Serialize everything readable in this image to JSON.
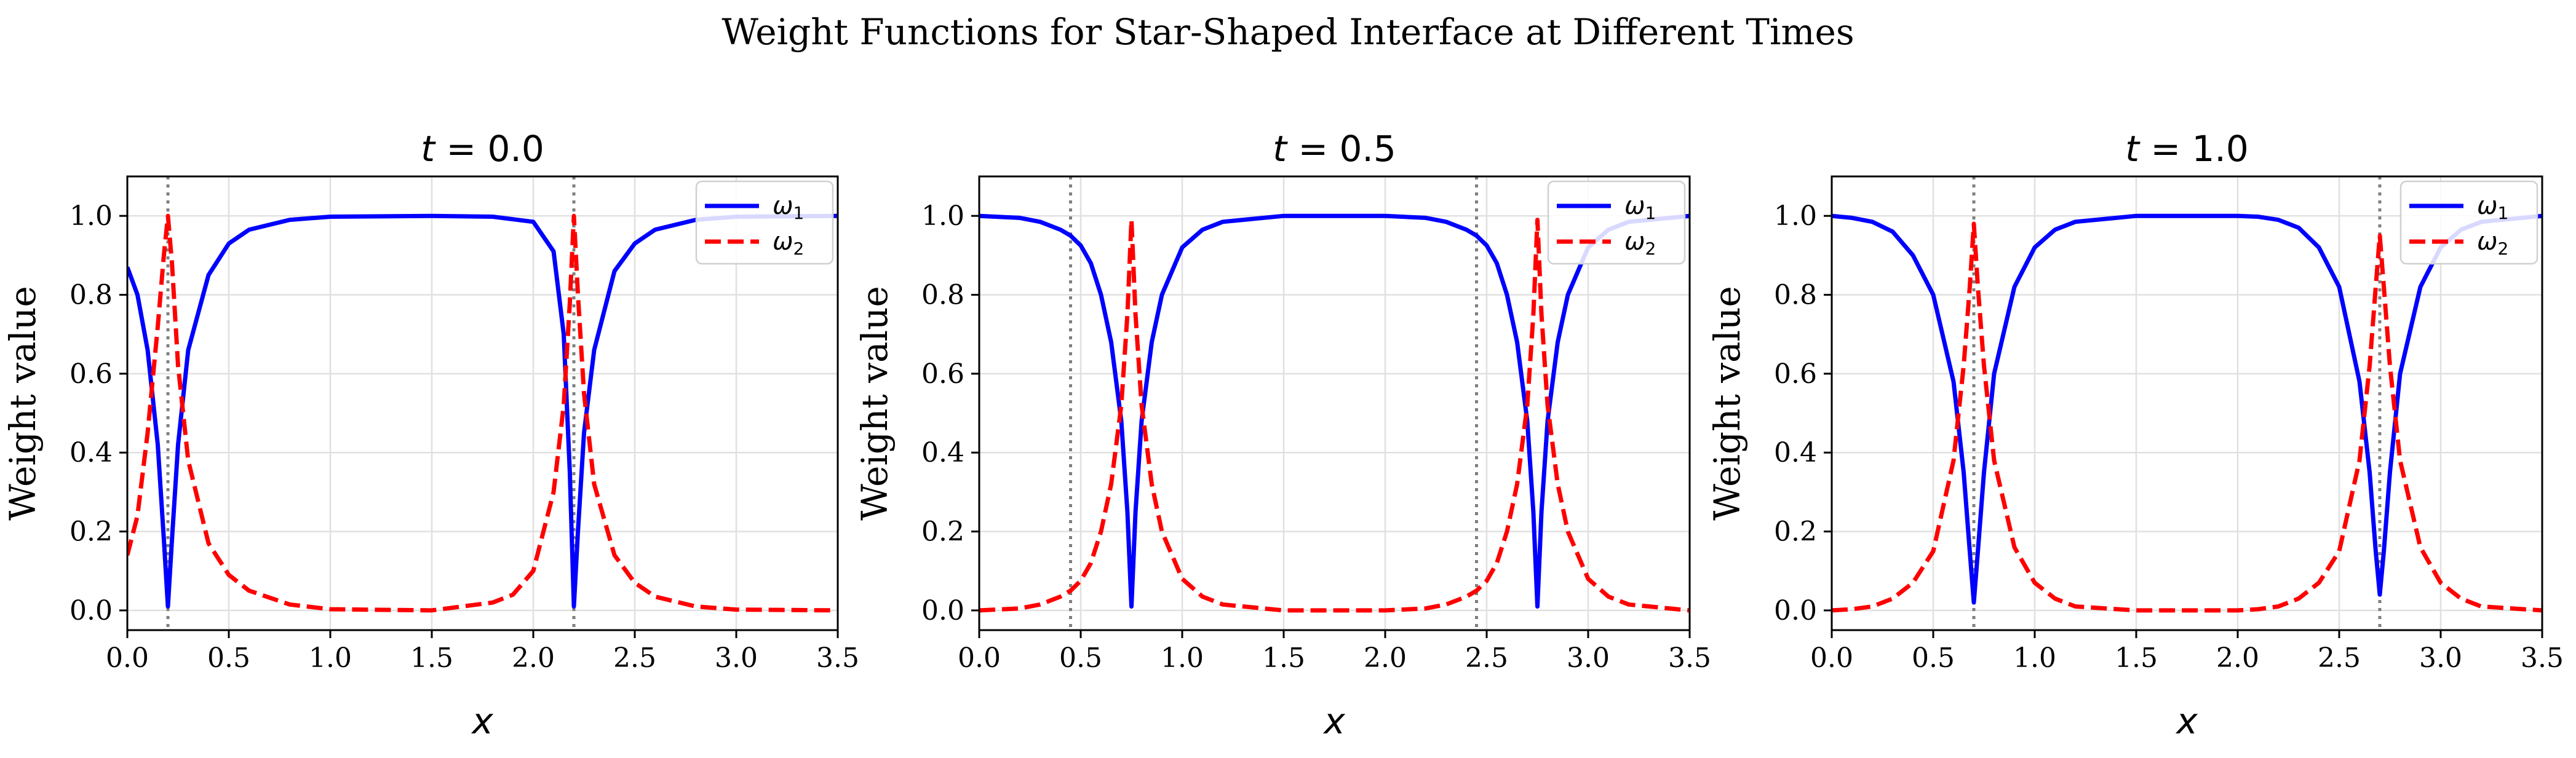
{
  "figure": {
    "title": "Weight Functions for Star-Shaped Interface at Different Times"
  },
  "colors": {
    "omega1": "#0000ff",
    "omega2": "#ff0000",
    "interface_line": "#808080",
    "grid": "#e0e0e0",
    "axes": "#000000"
  },
  "chart_data": [
    {
      "type": "line",
      "title": "t = 0.0",
      "title_var": "t",
      "title_val": "= 0.0",
      "xlabel": "x",
      "ylabel": "Weight value",
      "xlim": [
        0.0,
        3.5
      ],
      "ylim": [
        -0.05,
        1.1
      ],
      "xticks": [
        0.0,
        0.5,
        1.0,
        1.5,
        2.0,
        2.5,
        3.0,
        3.5
      ],
      "xtick_labels": [
        "0.0",
        "0.5",
        "1.0",
        "1.5",
        "2.0",
        "2.5",
        "3.0",
        "3.5"
      ],
      "yticks": [
        0.0,
        0.2,
        0.4,
        0.6,
        0.8,
        1.0
      ],
      "ytick_labels": [
        "0.0",
        "0.2",
        "0.4",
        "0.6",
        "0.8",
        "1.0"
      ],
      "grid": true,
      "legend_position": "top-right",
      "interfaces": [
        0.2,
        2.2
      ],
      "series": [
        {
          "name": "ω₁",
          "legend_base": "ω",
          "legend_sub": "1",
          "style": "solid",
          "color": "#0000ff",
          "x": [
            0.0,
            0.05,
            0.1,
            0.15,
            0.18,
            0.2,
            0.22,
            0.25,
            0.3,
            0.4,
            0.5,
            0.6,
            0.8,
            1.0,
            1.5,
            1.8,
            2.0,
            2.1,
            2.15,
            2.18,
            2.2,
            2.22,
            2.25,
            2.3,
            2.4,
            2.5,
            2.6,
            2.8,
            3.0,
            3.5
          ],
          "y": [
            0.87,
            0.8,
            0.66,
            0.42,
            0.18,
            0.01,
            0.18,
            0.42,
            0.66,
            0.85,
            0.93,
            0.965,
            0.99,
            0.998,
            1.0,
            0.998,
            0.985,
            0.91,
            0.7,
            0.35,
            0.01,
            0.2,
            0.45,
            0.66,
            0.86,
            0.93,
            0.965,
            0.99,
            0.998,
            1.0
          ]
        },
        {
          "name": "ω₂",
          "legend_base": "ω",
          "legend_sub": "2",
          "style": "dashed",
          "color": "#ff0000",
          "x": [
            0.0,
            0.05,
            0.1,
            0.15,
            0.18,
            0.2,
            0.22,
            0.25,
            0.3,
            0.4,
            0.5,
            0.6,
            0.8,
            1.0,
            1.5,
            1.8,
            1.9,
            2.0,
            2.1,
            2.15,
            2.18,
            2.2,
            2.22,
            2.25,
            2.3,
            2.4,
            2.5,
            2.6,
            2.8,
            3.0,
            3.5
          ],
          "y": [
            0.14,
            0.24,
            0.45,
            0.72,
            0.9,
            1.0,
            0.88,
            0.62,
            0.38,
            0.17,
            0.09,
            0.05,
            0.015,
            0.003,
            0.0,
            0.02,
            0.04,
            0.1,
            0.3,
            0.52,
            0.78,
            1.0,
            0.8,
            0.55,
            0.32,
            0.14,
            0.07,
            0.035,
            0.01,
            0.002,
            0.0
          ]
        }
      ]
    },
    {
      "type": "line",
      "title": "t = 0.5",
      "title_var": "t",
      "title_val": "= 0.5",
      "xlabel": "x",
      "ylabel": "Weight value",
      "xlim": [
        0.0,
        3.5
      ],
      "ylim": [
        -0.05,
        1.1
      ],
      "xticks": [
        0.0,
        0.5,
        1.0,
        1.5,
        2.0,
        2.5,
        3.0,
        3.5
      ],
      "xtick_labels": [
        "0.0",
        "0.5",
        "1.0",
        "1.5",
        "2.0",
        "2.5",
        "3.0",
        "3.5"
      ],
      "yticks": [
        0.0,
        0.2,
        0.4,
        0.6,
        0.8,
        1.0
      ],
      "ytick_labels": [
        "0.0",
        "0.2",
        "0.4",
        "0.6",
        "0.8",
        "1.0"
      ],
      "grid": true,
      "legend_position": "top-right",
      "interfaces": [
        0.45,
        2.45
      ],
      "series": [
        {
          "name": "ω₁",
          "legend_base": "ω",
          "legend_sub": "1",
          "style": "solid",
          "color": "#0000ff",
          "x": [
            0.0,
            0.2,
            0.3,
            0.4,
            0.45,
            0.5,
            0.55,
            0.6,
            0.65,
            0.7,
            0.73,
            0.75,
            0.77,
            0.8,
            0.85,
            0.9,
            1.0,
            1.1,
            1.2,
            1.5,
            2.0,
            2.2,
            2.3,
            2.4,
            2.45,
            2.5,
            2.55,
            2.6,
            2.65,
            2.7,
            2.73,
            2.75,
            2.77,
            2.8,
            2.85,
            2.9,
            3.0,
            3.1,
            3.2,
            3.5
          ],
          "y": [
            1.0,
            0.995,
            0.985,
            0.965,
            0.95,
            0.925,
            0.88,
            0.8,
            0.68,
            0.48,
            0.25,
            0.01,
            0.25,
            0.48,
            0.68,
            0.8,
            0.92,
            0.965,
            0.985,
            1.0,
            1.0,
            0.995,
            0.985,
            0.965,
            0.95,
            0.925,
            0.88,
            0.8,
            0.68,
            0.48,
            0.25,
            0.01,
            0.25,
            0.48,
            0.68,
            0.8,
            0.92,
            0.965,
            0.985,
            1.0
          ]
        },
        {
          "name": "ω₂",
          "legend_base": "ω",
          "legend_sub": "2",
          "style": "dashed",
          "color": "#ff0000",
          "x": [
            0.0,
            0.2,
            0.3,
            0.4,
            0.45,
            0.5,
            0.55,
            0.6,
            0.65,
            0.7,
            0.73,
            0.75,
            0.77,
            0.8,
            0.85,
            0.9,
            1.0,
            1.1,
            1.2,
            1.5,
            2.0,
            2.2,
            2.3,
            2.4,
            2.45,
            2.5,
            2.55,
            2.6,
            2.65,
            2.7,
            2.73,
            2.75,
            2.77,
            2.8,
            2.85,
            2.9,
            3.0,
            3.1,
            3.2,
            3.5
          ],
          "y": [
            0.0,
            0.005,
            0.015,
            0.035,
            0.05,
            0.075,
            0.12,
            0.2,
            0.32,
            0.52,
            0.75,
            0.99,
            0.75,
            0.52,
            0.32,
            0.2,
            0.08,
            0.035,
            0.015,
            0.0,
            0.0,
            0.005,
            0.015,
            0.035,
            0.05,
            0.075,
            0.12,
            0.2,
            0.32,
            0.52,
            0.75,
            0.99,
            0.75,
            0.52,
            0.32,
            0.2,
            0.08,
            0.035,
            0.015,
            0.0
          ]
        }
      ]
    },
    {
      "type": "line",
      "title": "t = 1.0",
      "title_var": "t",
      "title_val": "= 1.0",
      "xlabel": "x",
      "ylabel": "Weight value",
      "xlim": [
        0.0,
        3.5
      ],
      "ylim": [
        -0.05,
        1.1
      ],
      "xticks": [
        0.0,
        0.5,
        1.0,
        1.5,
        2.0,
        2.5,
        3.0,
        3.5
      ],
      "xtick_labels": [
        "0.0",
        "0.5",
        "1.0",
        "1.5",
        "2.0",
        "2.5",
        "3.0",
        "3.5"
      ],
      "yticks": [
        0.0,
        0.2,
        0.4,
        0.6,
        0.8,
        1.0
      ],
      "ytick_labels": [
        "0.0",
        "0.2",
        "0.4",
        "0.6",
        "0.8",
        "1.0"
      ],
      "grid": true,
      "legend_position": "top-right",
      "interfaces": [
        0.7,
        2.7
      ],
      "series": [
        {
          "name": "ω₁",
          "legend_base": "ω",
          "legend_sub": "1",
          "style": "solid",
          "color": "#0000ff",
          "x": [
            0.0,
            0.1,
            0.2,
            0.3,
            0.4,
            0.5,
            0.6,
            0.65,
            0.68,
            0.7,
            0.72,
            0.75,
            0.8,
            0.9,
            1.0,
            1.1,
            1.2,
            1.5,
            2.0,
            2.1,
            2.2,
            2.3,
            2.4,
            2.5,
            2.6,
            2.65,
            2.68,
            2.7,
            2.72,
            2.75,
            2.8,
            2.9,
            3.0,
            3.1,
            3.2,
            3.5
          ],
          "y": [
            1.0,
            0.995,
            0.985,
            0.96,
            0.9,
            0.8,
            0.58,
            0.35,
            0.15,
            0.02,
            0.15,
            0.35,
            0.6,
            0.82,
            0.92,
            0.965,
            0.985,
            1.0,
            1.0,
            0.998,
            0.99,
            0.97,
            0.92,
            0.82,
            0.58,
            0.35,
            0.15,
            0.04,
            0.15,
            0.35,
            0.6,
            0.82,
            0.92,
            0.965,
            0.985,
            1.0
          ]
        },
        {
          "name": "ω₂",
          "legend_base": "ω",
          "legend_sub": "2",
          "style": "dashed",
          "color": "#ff0000",
          "x": [
            0.0,
            0.1,
            0.2,
            0.3,
            0.4,
            0.5,
            0.6,
            0.65,
            0.68,
            0.7,
            0.72,
            0.75,
            0.8,
            0.9,
            1.0,
            1.1,
            1.2,
            1.5,
            2.0,
            2.1,
            2.2,
            2.3,
            2.4,
            2.5,
            2.6,
            2.65,
            2.68,
            2.7,
            2.72,
            2.75,
            2.8,
            2.9,
            3.0,
            3.1,
            3.2,
            3.5
          ],
          "y": [
            0.0,
            0.003,
            0.01,
            0.03,
            0.07,
            0.15,
            0.38,
            0.62,
            0.82,
            0.98,
            0.82,
            0.62,
            0.38,
            0.16,
            0.07,
            0.03,
            0.01,
            0.0,
            0.0,
            0.003,
            0.01,
            0.03,
            0.07,
            0.15,
            0.38,
            0.62,
            0.82,
            0.95,
            0.82,
            0.62,
            0.38,
            0.16,
            0.07,
            0.03,
            0.01,
            0.0
          ]
        }
      ]
    }
  ]
}
